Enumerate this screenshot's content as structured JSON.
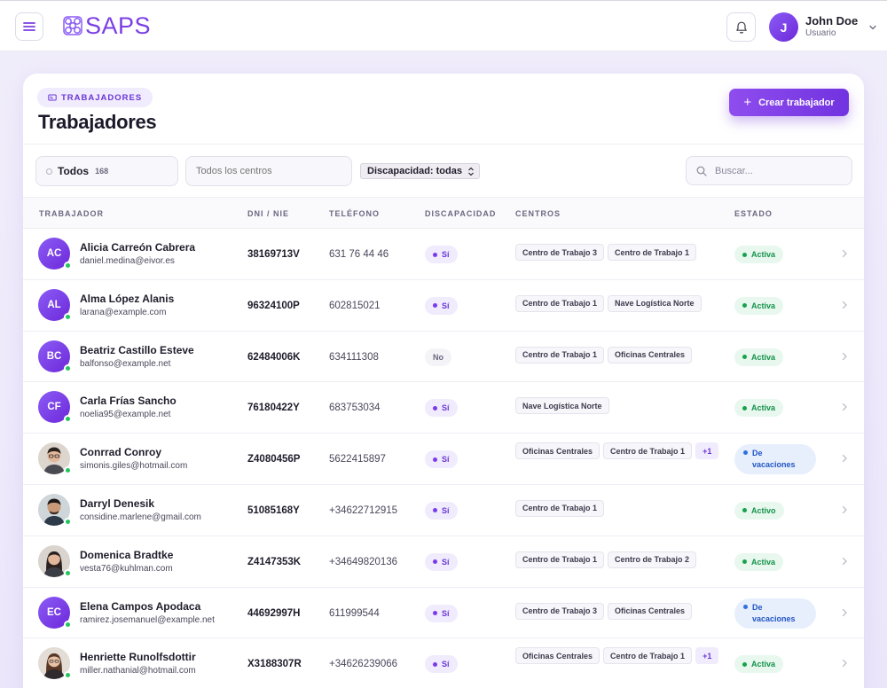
{
  "app": {
    "name": "SAPS"
  },
  "user": {
    "initial": "J",
    "name": "John Doe",
    "role": "Usuario"
  },
  "page": {
    "breadcrumb": "TRABAJADORES",
    "title": "Trabajadores",
    "create_button": "Crear trabajador"
  },
  "filters": {
    "all_label": "Todos",
    "all_count": "168",
    "centros_placeholder": "Todos los centros",
    "discapacidad_value": "Discapacidad: todas",
    "search_placeholder": "Buscar..."
  },
  "table": {
    "headers": [
      "TRABAJADOR",
      "DNI / NIE",
      "TELÉFONO",
      "DISCAPACIDAD",
      "CENTROS",
      "ESTADO"
    ],
    "rows": [
      {
        "initials": "AC",
        "name": "Alicia Carreón Cabrera",
        "email": "daniel.medina@eivor.es",
        "dni": "38169713V",
        "phone": "631 76 44 46",
        "disc": "Sí",
        "centros": [
          "Centro de Trabajo 3",
          "Centro de Trabajo 1"
        ],
        "status": "Activa"
      },
      {
        "initials": "AL",
        "name": "Alma López Alanis",
        "email": "larana@example.com",
        "dni": "96324100P",
        "phone": "602815021",
        "disc": "Sí",
        "centros": [
          "Centro de Trabajo 1",
          "Nave Logística Norte"
        ],
        "status": "Activa"
      },
      {
        "initials": "BC",
        "name": "Beatriz Castillo Esteve",
        "email": "balfonso@example.net",
        "dni": "62484006K",
        "phone": "634111308",
        "disc": "No",
        "centros": [
          "Centro de Trabajo 1",
          "Oficinas Centrales"
        ],
        "status": "Activa"
      },
      {
        "initials": "CF",
        "name": "Carla Frías Sancho",
        "email": "noelia95@example.net",
        "dni": "76180422Y",
        "phone": "683753034",
        "disc": "Sí",
        "centros": [
          "Nave Logística Norte"
        ],
        "status": "Activa"
      },
      {
        "initials": "",
        "photo": "man-glasses",
        "name": "Conrrad Conroy",
        "email": "simonis.giles@hotmail.com",
        "dni": "Z4080456P",
        "phone": "5622415897",
        "disc": "Sí",
        "centros": [
          "Oficinas Centrales",
          "Centro de Trabajo 1"
        ],
        "more": "+1",
        "status": "De vacaciones"
      },
      {
        "initials": "",
        "photo": "man-dark",
        "name": "Darryl Denesik",
        "email": "considine.marlene@gmail.com",
        "dni": "51085168Y",
        "phone": "+34622712915",
        "disc": "Sí",
        "centros": [
          "Centro de Trabajo 1"
        ],
        "status": "Activo"
      },
      {
        "initials": "",
        "photo": "woman-dark",
        "name": "Domenica Bradtke",
        "email": "vesta76@kuhlman.com",
        "dni": "Z4147353K",
        "phone": "+34649820136",
        "disc": "Sí",
        "centros": [
          "Centro de Trabajo 1",
          "Centro de Trabajo 2"
        ],
        "status": "Activa"
      },
      {
        "initials": "EC",
        "name": "Elena Campos Apodaca",
        "email": "ramirez.josemanuel@example.net",
        "dni": "44692997H",
        "phone": "611999544",
        "disc": "Sí",
        "centros": [
          "Centro de Trabajo 3",
          "Oficinas Centrales"
        ],
        "status": "De vacaciones"
      },
      {
        "initials": "",
        "photo": "woman-brown",
        "name": "Henriette Runolfsdottir",
        "email": "miller.nathanial@hotmail.com",
        "dni": "X3188307R",
        "phone": "+34626239066",
        "disc": "Sí",
        "centros": [
          "Oficinas Centrales",
          "Centro de Trabajo 1"
        ],
        "more": "+1",
        "status": "Activa"
      }
    ]
  },
  "colors": {
    "accent": "#7b3fe4",
    "active": "#15924a",
    "vacation": "#2356c4",
    "online": "#22c55e"
  }
}
